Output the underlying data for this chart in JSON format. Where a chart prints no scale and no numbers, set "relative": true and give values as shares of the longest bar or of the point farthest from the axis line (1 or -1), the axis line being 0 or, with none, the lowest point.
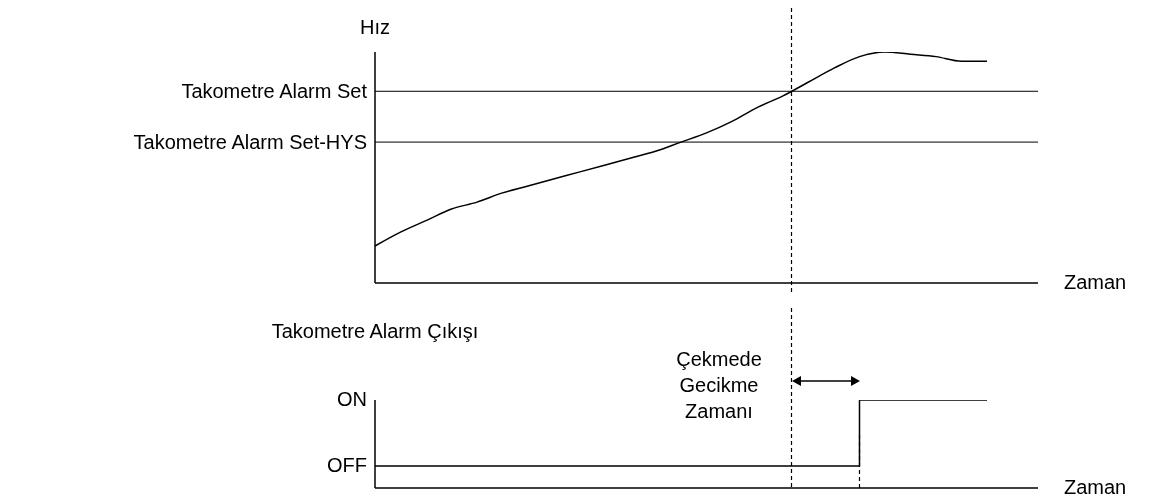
{
  "chart_data": [
    {
      "type": "line",
      "ylabel": "Hız",
      "xlabel": "Zaman",
      "relative": true,
      "categories": [
        null,
        null,
        null,
        null,
        null,
        null,
        null,
        null,
        null,
        null,
        null,
        null,
        null,
        null,
        null,
        null,
        null,
        null,
        null,
        null,
        null,
        null,
        null,
        null,
        null,
        null,
        null
      ],
      "series": [
        {
          "color": "#000000",
          "values": [
            0.16,
            0.22,
            0.27,
            0.32,
            0.35,
            0.39,
            0.42,
            0.45,
            0.48,
            0.51,
            0.54,
            0.57,
            0.61,
            0.65,
            0.7,
            0.76,
            0.81,
            0.87,
            0.93,
            0.98,
            1.0,
            0.99,
            0.98,
            0.96,
            0.96,
            null,
            null
          ]
        }
      ],
      "ref_lines": [
        {
          "axis": "y",
          "value": 0.83,
          "label": "Takometre Alarm Set",
          "color": "#000000"
        },
        {
          "axis": "y",
          "value": 0.61,
          "label": "Takometre Alarm Set-HYS",
          "color": "#000000"
        }
      ]
    },
    {
      "type": "step",
      "ylabel": "Takometre Alarm Çıkışı",
      "xlabel": "Zaman",
      "relative": true,
      "categories": [
        null,
        null,
        null,
        null,
        null,
        null,
        null,
        null,
        null,
        null,
        null,
        null,
        null,
        null,
        null,
        null,
        null,
        null,
        null,
        null,
        null,
        null,
        null,
        null,
        null,
        null,
        null
      ],
      "series": [
        {
          "color": "#000000",
          "values": [
            0.25,
            0.25,
            0.25,
            0.25,
            0.25,
            0.25,
            0.25,
            0.25,
            0.25,
            0.25,
            0.25,
            0.25,
            0.25,
            0.25,
            0.25,
            0.25,
            0.25,
            0.25,
            0.25,
            1,
            1,
            1,
            1,
            1,
            1,
            null,
            null
          ]
        }
      ],
      "annotations": [
        "ON",
        "OFF",
        "Çekmede Gecikme Zamanı"
      ]
    }
  ]
}
